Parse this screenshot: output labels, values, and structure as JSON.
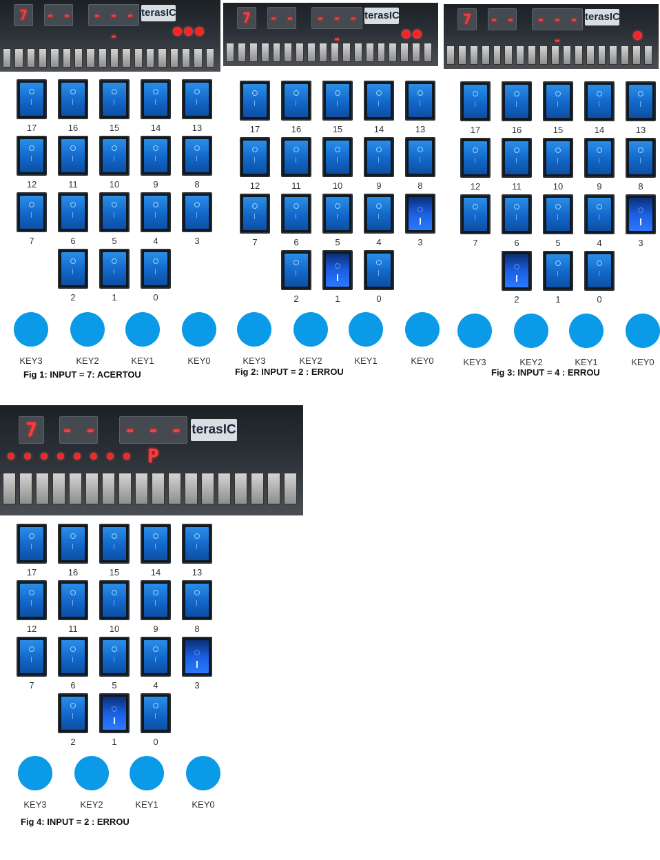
{
  "board_logo": "terasIC",
  "switch_rows": [
    [
      "17",
      "16",
      "15",
      "14",
      "13"
    ],
    [
      "12",
      "11",
      "10",
      "9",
      "8"
    ],
    [
      "7",
      "6",
      "5",
      "4",
      "3"
    ],
    [
      "2",
      "1",
      "0"
    ]
  ],
  "keys": [
    "KEY3",
    "KEY2",
    "KEY1",
    "KEY0"
  ],
  "colors": {
    "switch_blue": "#1267c9",
    "key_blue": "#0a9ae8",
    "led_red": "#ff2020"
  },
  "figures": [
    {
      "caption": "Fig 1: INPUT = 7: ACERTOU",
      "display": [
        "7",
        "- -",
        "- - - -"
      ],
      "red_leds": 3,
      "switches_on": []
    },
    {
      "caption": "Fig 2: INPUT = 2 : ERROU",
      "display": [
        "7",
        "- -",
        "- - - -"
      ],
      "red_leds": 2,
      "switches_on": [
        "3",
        "1"
      ]
    },
    {
      "caption": "Fig 3: INPUT = 4 : ERROU",
      "display": [
        "7",
        "- -",
        "- - - -"
      ],
      "red_leds": 1,
      "switches_on": [
        "3",
        "2"
      ]
    },
    {
      "caption": "Fig 4: INPUT = 2 : ERROU",
      "display": [
        "7",
        "- -",
        "- - - P"
      ],
      "red_leds": 8,
      "switches_on": [
        "3",
        "1"
      ]
    }
  ]
}
